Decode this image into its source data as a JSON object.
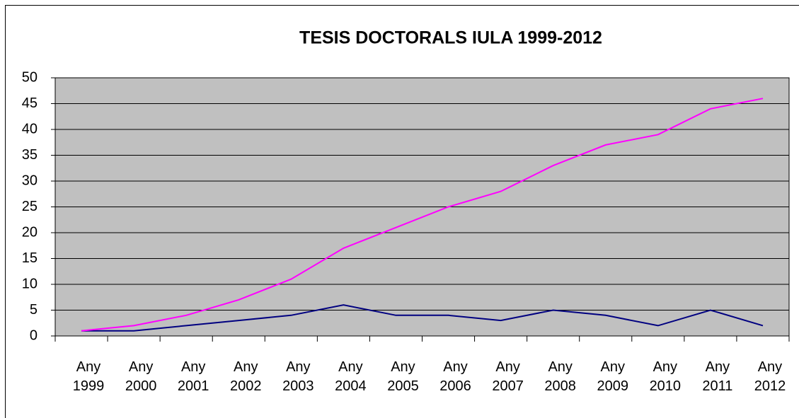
{
  "chart_data": {
    "type": "line",
    "title": "TESIS DOCTORALS IULA 1999-2012",
    "categories": [
      "Any 1999",
      "Any 2000",
      "Any 2001",
      "Any 2002",
      "Any 2003",
      "Any 2004",
      "Any 2005",
      "Any 2006",
      "Any 2007",
      "Any 2008",
      "Any 2009",
      "Any 2010",
      "Any 2011",
      "Any 2012"
    ],
    "series": [
      {
        "color": "#ff00ff",
        "values": [
          1,
          2,
          4,
          7,
          11,
          17,
          21,
          25,
          28,
          33,
          37,
          39,
          44,
          46
        ]
      },
      {
        "color": "#000080",
        "values": [
          1,
          1,
          2,
          3,
          4,
          6,
          4,
          4,
          3,
          5,
          4,
          2,
          5,
          2
        ]
      }
    ],
    "ylim": [
      0,
      50
    ],
    "yticks": [
      0,
      5,
      10,
      15,
      20,
      25,
      30,
      35,
      40,
      45,
      50
    ],
    "grid": true
  }
}
